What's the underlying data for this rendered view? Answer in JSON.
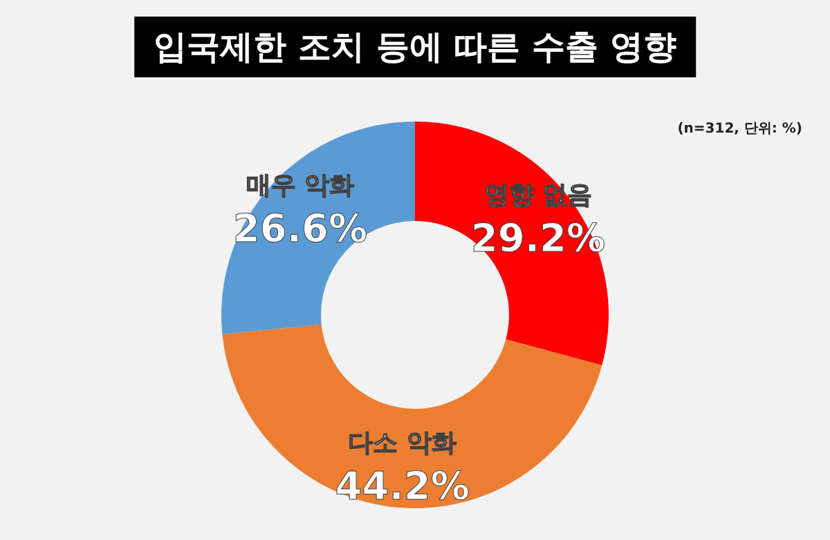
{
  "chart_data": {
    "type": "donut",
    "title": "입국제한 조치 등에 따른 수출 영향",
    "annotations": [
      "(n=312, 단위: %)"
    ],
    "categories": [
      "영향 없음",
      "다소 악화",
      "매우 악화"
    ],
    "values": [
      29.2,
      44.2,
      26.6
    ],
    "colors": [
      "#ff0000",
      "#ed7d31",
      "#5b9bd5"
    ],
    "value_labels": [
      "29.2%",
      "44.2%",
      "26.6%"
    ],
    "legend": false
  }
}
